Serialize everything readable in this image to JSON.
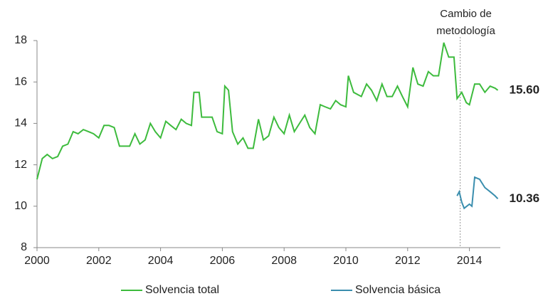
{
  "chart_data": {
    "type": "line",
    "xlim": [
      2000,
      2015
    ],
    "xticks": [
      2000,
      2002,
      2004,
      2006,
      2008,
      2010,
      2012,
      2014
    ],
    "ylim": [
      8,
      18
    ],
    "yticks": [
      8,
      10,
      12,
      14,
      16,
      18
    ],
    "grid": false,
    "legend": "bottom",
    "annotation": {
      "x": 2013.7,
      "lines": [
        "Cambio de",
        "metodología"
      ]
    },
    "series": [
      {
        "name": "Solvencia total",
        "color": "#3dbb3d",
        "x": [
          2000.0,
          2000.17,
          2000.33,
          2000.5,
          2000.67,
          2000.83,
          2001.0,
          2001.17,
          2001.33,
          2001.5,
          2001.67,
          2001.83,
          2002.0,
          2002.17,
          2002.33,
          2002.5,
          2002.67,
          2002.83,
          2003.0,
          2003.17,
          2003.33,
          2003.5,
          2003.67,
          2003.83,
          2004.0,
          2004.17,
          2004.33,
          2004.5,
          2004.67,
          2004.83,
          2005.0,
          2005.08,
          2005.25,
          2005.33,
          2005.5,
          2005.67,
          2005.83,
          2006.0,
          2006.08,
          2006.2,
          2006.33,
          2006.5,
          2006.67,
          2006.83,
          2007.0,
          2007.17,
          2007.33,
          2007.5,
          2007.67,
          2007.83,
          2008.0,
          2008.17,
          2008.33,
          2008.5,
          2008.67,
          2008.83,
          2009.0,
          2009.17,
          2009.33,
          2009.5,
          2009.67,
          2009.83,
          2010.0,
          2010.08,
          2010.25,
          2010.5,
          2010.67,
          2010.83,
          2011.0,
          2011.17,
          2011.33,
          2011.5,
          2011.67,
          2011.83,
          2012.0,
          2012.17,
          2012.33,
          2012.5,
          2012.67,
          2012.83,
          2013.0,
          2013.17,
          2013.33,
          2013.5,
          2013.6,
          2013.75,
          2013.9,
          2014.0,
          2014.17,
          2014.33,
          2014.5,
          2014.67,
          2014.83,
          2014.92
        ],
        "values": [
          11.3,
          12.3,
          12.5,
          12.3,
          12.4,
          12.9,
          13.0,
          13.6,
          13.5,
          13.7,
          13.6,
          13.5,
          13.3,
          13.9,
          13.9,
          13.8,
          12.9,
          12.9,
          12.9,
          13.5,
          13.0,
          13.2,
          14.0,
          13.6,
          13.3,
          14.1,
          13.9,
          13.7,
          14.2,
          14.0,
          13.9,
          15.5,
          15.5,
          14.3,
          14.3,
          14.3,
          13.6,
          13.5,
          15.8,
          15.6,
          13.6,
          13.0,
          13.3,
          12.8,
          12.8,
          14.2,
          13.2,
          13.4,
          14.3,
          13.8,
          13.5,
          14.4,
          13.6,
          14.0,
          14.4,
          13.8,
          13.5,
          14.9,
          14.8,
          14.7,
          15.1,
          14.9,
          14.8,
          16.3,
          15.5,
          15.3,
          15.9,
          15.6,
          15.1,
          15.9,
          15.3,
          15.3,
          15.8,
          15.3,
          14.8,
          16.7,
          15.9,
          15.8,
          16.5,
          16.3,
          16.3,
          17.9,
          17.2,
          17.2,
          15.2,
          15.5,
          15.0,
          14.9,
          15.9,
          15.9,
          15.5,
          15.8,
          15.7,
          15.6
        ],
        "end_label": {
          "value": 15.6,
          "label": "15.60"
        }
      },
      {
        "name": "Solvencia básica",
        "color": "#3a8eae",
        "x": [
          2013.6,
          2013.67,
          2013.75,
          2013.83,
          2014.0,
          2014.08,
          2014.17,
          2014.33,
          2014.5,
          2014.67,
          2014.83,
          2014.92
        ],
        "values": [
          10.5,
          10.7,
          10.2,
          9.9,
          10.1,
          10.0,
          11.4,
          11.3,
          10.9,
          10.7,
          10.5,
          10.36
        ],
        "end_label": {
          "value": 10.36,
          "label": "10.36"
        }
      }
    ]
  }
}
